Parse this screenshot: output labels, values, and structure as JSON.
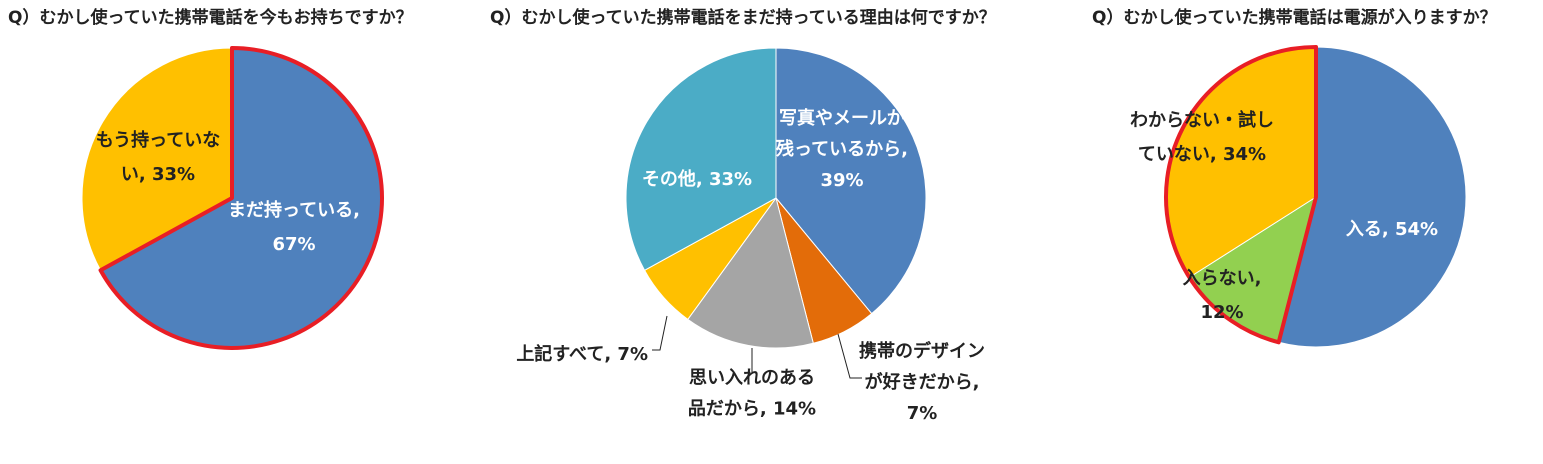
{
  "chart_data": [
    {
      "type": "pie",
      "title": "Q）むかし使っていた携帯電話を今もお持ちですか？",
      "slices": [
        {
          "label": [
            "まだ持っている,",
            "67%"
          ],
          "value": 67,
          "color": "#4F81BD"
        },
        {
          "label": [
            "もう持っていな",
            "い, 33%"
          ],
          "value": 33,
          "color": "#FFC000"
        }
      ],
      "highlight": {
        "from": 0,
        "to": 0,
        "color": "#E81E25"
      }
    },
    {
      "type": "pie",
      "title": "Q）むかし使っていた携帯電話をまだ持っている理由は何ですか？",
      "slices": [
        {
          "label": [
            "写真やメールが",
            "残っているから,",
            "39%"
          ],
          "value": 39,
          "color": "#4F81BD"
        },
        {
          "label": [
            "携帯のデザイン",
            "が好きだから,",
            "7%"
          ],
          "value": 7,
          "color": "#E36C09"
        },
        {
          "label": [
            "思い入れのある",
            "品だから, 14%"
          ],
          "value": 14,
          "color": "#A5A5A5"
        },
        {
          "label": [
            "上記すべて, 7%"
          ],
          "value": 7,
          "color": "#FFC000"
        },
        {
          "label": [
            "その他, 33%"
          ],
          "value": 33,
          "color": "#4BACC6"
        }
      ]
    },
    {
      "type": "pie",
      "title": "Q）むかし使っていた携帯電話は電源が入りますか？",
      "slices": [
        {
          "label": [
            "入る, 54%"
          ],
          "value": 54,
          "color": "#4F81BD"
        },
        {
          "label": [
            "入らない,",
            "12%"
          ],
          "value": 12,
          "color": "#92D050"
        },
        {
          "label": [
            "わからない・試し",
            "ていない, 34%"
          ],
          "value": 34,
          "color": "#FFC000"
        }
      ],
      "highlight": {
        "from": 1,
        "to": 2,
        "color": "#E81E25"
      }
    }
  ]
}
